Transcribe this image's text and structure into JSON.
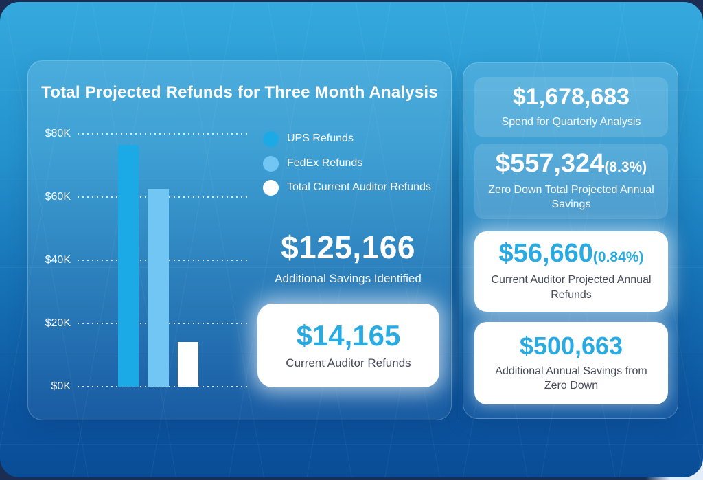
{
  "left_panel": {
    "title": "Total Projected Refunds for Three Month Analysis",
    "legend": [
      {
        "label": "UPS Refunds",
        "color": "#1caae6"
      },
      {
        "label": "FedEx Refunds",
        "color": "#71c6f4"
      },
      {
        "label": "Total Current Auditor Refunds",
        "color": "#ffffff"
      }
    ],
    "stat": {
      "value": "$125,166",
      "label": "Additional Savings Identified"
    },
    "highlight_card": {
      "value": "$14,165",
      "label": "Current Auditor Refunds"
    }
  },
  "right_panel": {
    "cards": [
      {
        "value": "$1,678,683",
        "suffix": "",
        "label": "Spend for Quarterly Analysis",
        "style": "glass"
      },
      {
        "value": "$557,324",
        "suffix": "(8.3%)",
        "label": "Zero Down Total Projected Annual Savings",
        "style": "glass"
      },
      {
        "value": "$56,660",
        "suffix": "(0.84%)",
        "label": "Current Auditor Projected Annual Refunds",
        "style": "white"
      },
      {
        "value": "$500,663",
        "suffix": "",
        "label": "Additional Annual Savings from Zero Down",
        "style": "white"
      }
    ]
  },
  "chart_data": {
    "type": "bar",
    "title": "Total Projected Refunds for Three Month Analysis",
    "categories": [
      "UPS Refunds",
      "FedEx Refunds",
      "Total Current Auditor Refunds"
    ],
    "values": [
      76500,
      62600,
      14165
    ],
    "bar_colors": [
      "#1caae6",
      "#71c6f4",
      "#ffffff"
    ],
    "ylim": [
      0,
      80000
    ],
    "yticks": [
      "$80K",
      "$60K",
      "$40K",
      "$20K",
      "$0K"
    ],
    "grid": "horizontal-dotted",
    "legend_position": "upper-right",
    "xlabel": "",
    "ylabel": ""
  },
  "colors": {
    "accent_blue": "#29abe2",
    "bg_top": "#35a9de",
    "bg_bottom": "#0a4d97",
    "dark_label": "#454b58"
  }
}
